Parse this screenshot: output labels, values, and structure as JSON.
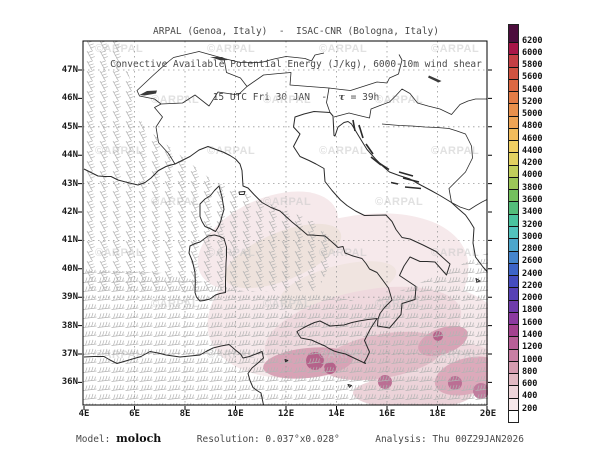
{
  "header": {
    "line1": "ARPAL (Genoa, Italy)  -  ISAC-CNR (Bologna, Italy)",
    "line2": "Convective Available Potential Energy (J/kg), 6000-10m wind shear",
    "line3_prefix": "15 UTC Fri 30 JAN  -  ",
    "line3_tau": "τ",
    "line3_suffix": " = 39h"
  },
  "footer": {
    "model_label": "Model:",
    "model_value": "moloch",
    "resolution": "Resolution: 0.037°x0.028°",
    "analysis": "Analysis: Thu 00Z29JAN2026"
  },
  "watermark": {
    "text": "©ARPAL"
  },
  "axes": {
    "lon": [
      "4E",
      "6E",
      "8E",
      "10E",
      "12E",
      "14E",
      "16E",
      "18E",
      "20E"
    ],
    "lat": [
      "47N",
      "46N",
      "45N",
      "44N",
      "43N",
      "42N",
      "41N",
      "40N",
      "39N",
      "38N",
      "37N",
      "36N"
    ]
  },
  "colorbar": {
    "unit": "J/kg",
    "top_color": "#4d0d3d",
    "segments": [
      {
        "label": "6200",
        "color": "#a81648"
      },
      {
        "label": "6000",
        "color": "#c43f44"
      },
      {
        "label": "5800",
        "color": "#d05340"
      },
      {
        "label": "5600",
        "color": "#dc6842"
      },
      {
        "label": "5400",
        "color": "#e37c46"
      },
      {
        "label": "5200",
        "color": "#e9904c"
      },
      {
        "label": "5000",
        "color": "#eea455"
      },
      {
        "label": "4800",
        "color": "#f2bc5c"
      },
      {
        "label": "4600",
        "color": "#f0cf62"
      },
      {
        "label": "4400",
        "color": "#e3d161"
      },
      {
        "label": "4200",
        "color": "#c2cf5c"
      },
      {
        "label": "4000",
        "color": "#9cc658"
      },
      {
        "label": "3800",
        "color": "#73bf5d"
      },
      {
        "label": "3600",
        "color": "#53bd7a"
      },
      {
        "label": "3400",
        "color": "#49c29e"
      },
      {
        "label": "3200",
        "color": "#52c2bd"
      },
      {
        "label": "3000",
        "color": "#4da6cb"
      },
      {
        "label": "2800",
        "color": "#4585cc"
      },
      {
        "label": "2600",
        "color": "#3d64c7"
      },
      {
        "label": "2400",
        "color": "#454cbe"
      },
      {
        "label": "2200",
        "color": "#5741b5"
      },
      {
        "label": "2000",
        "color": "#6f3cab"
      },
      {
        "label": "1800",
        "color": "#8c3aa0"
      },
      {
        "label": "1600",
        "color": "#a4418f"
      },
      {
        "label": "1400",
        "color": "#b85f97"
      },
      {
        "label": "1200",
        "color": "#c87fa4"
      },
      {
        "label": "1000",
        "color": "#d59cb0"
      },
      {
        "label": "800",
        "color": "#e2b9c3"
      },
      {
        "label": "600",
        "color": "#eed5da"
      },
      {
        "label": "400",
        "color": "#f7e8ea"
      },
      {
        "label": "200",
        "color": "#ffffff"
      }
    ]
  },
  "chart_data": {
    "type": "heatmap",
    "title": "Convective Available Potential Energy (J/kg), 6000-10m wind shear",
    "institutions": "ARPAL (Genoa, Italy) - ISAC-CNR (Bologna, Italy)",
    "valid_time": "15 UTC Fri 30 JAN",
    "forecast_lead": "39h",
    "model": "moloch",
    "resolution": "0.037°x0.028°",
    "analysis_time": "Thu 00Z29JAN2026",
    "xlabel": "longitude",
    "ylabel": "latitude",
    "x_ticks": [
      "4E",
      "6E",
      "8E",
      "10E",
      "12E",
      "14E",
      "16E",
      "18E",
      "20E"
    ],
    "y_ticks": [
      "47N",
      "46N",
      "45N",
      "44N",
      "43N",
      "42N",
      "41N",
      "40N",
      "39N",
      "38N",
      "37N",
      "36N"
    ],
    "lon_range": [
      4,
      20
    ],
    "lat_range": [
      35.2,
      48.0
    ],
    "grid": "dotted, every 2 degrees",
    "legend_position": "right",
    "colorbar_levels_jkg": [
      200,
      400,
      600,
      800,
      1000,
      1200,
      1400,
      1600,
      1800,
      2000,
      2200,
      2400,
      2600,
      2800,
      3000,
      3200,
      3400,
      3600,
      3800,
      4000,
      4200,
      4400,
      4600,
      4800,
      5000,
      5200,
      5400,
      5600,
      5800,
      6000,
      6200
    ],
    "cape_shaded_regions": [
      {
        "region": "Tyrrhenian Sea east of Corsica and Sardinia",
        "cape_jkg": "200-600"
      },
      {
        "region": "southern Tyrrhenian Sea and north of Sicily",
        "cape_jkg": "400-1400"
      },
      {
        "region": "Strait of Sicily / south of Sicily",
        "cape_jkg": "600-1600"
      },
      {
        "region": "Ionian Sea and southeastern edge of domain",
        "cape_jkg": "400-1200"
      }
    ],
    "wind_shear_barb_regions": [
      "northwest quadrant (southern France, Gulf of Lion, Ligurian Sea, Corsica, Sardinia)",
      "southern band (southern Tyrrhenian, Sicily, Strait of Sicily, Ionian Sea)",
      "clear area over northern Adriatic, Po valley and Balkans"
    ]
  }
}
